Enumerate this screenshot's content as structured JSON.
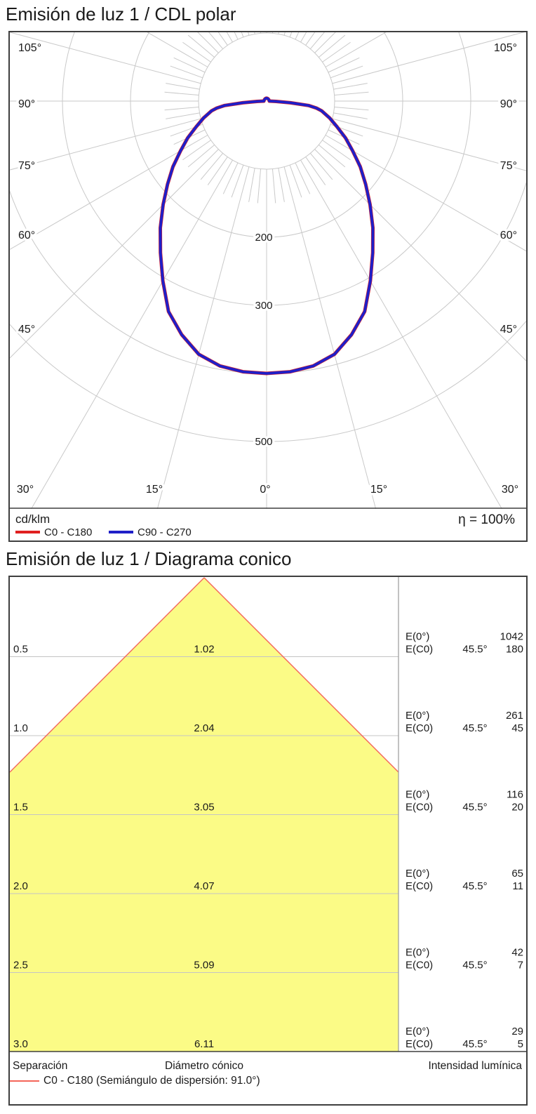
{
  "polar": {
    "title": "Emisión de luz 1 / CDL polar",
    "unit_label": "cd/klm",
    "efficiency_text": "η = 100%",
    "legend": [
      {
        "label": "C0 - C180",
        "color": "#e02020"
      },
      {
        "label": "C90 - C270",
        "color": "#1f1fc8"
      }
    ],
    "ring_values": [
      100,
      200,
      300,
      400,
      500
    ],
    "ring_labels": [
      {
        "text": "200",
        "value": 200
      },
      {
        "text": "300",
        "value": 300
      },
      {
        "text": "500",
        "value": 500
      }
    ],
    "side_angle_labels": [
      {
        "text": "105°",
        "y": 67
      },
      {
        "text": "90°",
        "y": 147
      },
      {
        "text": "75°",
        "y": 235
      },
      {
        "text": "60°",
        "y": 334
      },
      {
        "text": "45°",
        "y": 468
      }
    ],
    "bottom_angle_labels": [
      {
        "text": "30°",
        "x": 36
      },
      {
        "text": "15°",
        "x": 220
      },
      {
        "text": "0°",
        "x": 378
      },
      {
        "text": "15°",
        "x": 540
      },
      {
        "text": "30°",
        "x": 727
      }
    ]
  },
  "cone": {
    "title": "Emisión de luz 1 / Diagrama conico",
    "columns": [
      "Separación",
      "Diámetro cónico",
      "Intensidad lumínica"
    ],
    "legend_text": "C0 - C180 (Semiángulo de dispersión: 91.0°)",
    "edge_color": "#f4665a",
    "fill_color": "#fbfb86",
    "rows": [
      {
        "separation": "0.5",
        "diameter": "1.02",
        "e0_label": "E(0°)",
        "ec0_label": "E(C0)",
        "angle": "45.5°",
        "e0": "1042",
        "ec0": "180"
      },
      {
        "separation": "1.0",
        "diameter": "2.04",
        "e0_label": "E(0°)",
        "ec0_label": "E(C0)",
        "angle": "45.5°",
        "e0": "261",
        "ec0": "45"
      },
      {
        "separation": "1.5",
        "diameter": "3.05",
        "e0_label": "E(0°)",
        "ec0_label": "E(C0)",
        "angle": "45.5°",
        "e0": "116",
        "ec0": "20"
      },
      {
        "separation": "2.0",
        "diameter": "4.07",
        "e0_label": "E(0°)",
        "ec0_label": "E(C0)",
        "angle": "45.5°",
        "e0": "65",
        "ec0": "11"
      },
      {
        "separation": "2.5",
        "diameter": "5.09",
        "e0_label": "E(0°)",
        "ec0_label": "E(C0)",
        "angle": "45.5°",
        "e0": "42",
        "ec0": "7"
      },
      {
        "separation": "3.0",
        "diameter": "6.11",
        "e0_label": "E(0°)",
        "ec0_label": "E(C0)",
        "angle": "45.5°",
        "e0": "29",
        "ec0": "5"
      }
    ]
  },
  "chart_data": [
    {
      "type": "line",
      "subtype": "polar-intensity-curve",
      "title": "Emisión de luz 1 / CDL polar",
      "units": "cd/klm",
      "efficiency": "100%",
      "angular_ticks_deg": [
        0,
        15,
        30,
        45,
        60,
        75,
        90,
        105
      ],
      "radial_ticks": [
        100,
        200,
        300,
        400,
        500
      ],
      "radial_range": [
        0,
        500
      ],
      "grid": true,
      "legend_position": "bottom-left",
      "series": [
        {
          "name": "C0 - C180",
          "color": "#e02020",
          "symmetric_mirror": true,
          "points_deg_cd": [
            [
              0,
              400
            ],
            [
              5,
              399
            ],
            [
              10,
              395
            ],
            [
              15,
              385
            ],
            [
              20,
              365
            ],
            [
              25,
              341
            ],
            [
              30,
              305
            ],
            [
              35,
              272
            ],
            [
              40,
              243
            ],
            [
              45,
              215
            ],
            [
              50,
              190
            ],
            [
              55,
              168
            ],
            [
              60,
              146
            ],
            [
              65,
              128
            ],
            [
              70,
              110
            ],
            [
              75,
              96
            ],
            [
              80,
              82
            ],
            [
              82,
              74
            ],
            [
              84,
              62
            ],
            [
              86,
              35
            ],
            [
              88,
              14
            ],
            [
              90,
              4
            ]
          ]
        },
        {
          "name": "C90 - C270",
          "color": "#1f1fc8",
          "symmetric_mirror": true,
          "points_deg_cd": [
            [
              0,
              400
            ],
            [
              5,
              399
            ],
            [
              10,
              395
            ],
            [
              15,
              385
            ],
            [
              20,
              365
            ],
            [
              25,
              341
            ],
            [
              30,
              305
            ],
            [
              35,
              272
            ],
            [
              40,
              243
            ],
            [
              45,
              215
            ],
            [
              50,
              190
            ],
            [
              55,
              168
            ],
            [
              60,
              146
            ],
            [
              65,
              128
            ],
            [
              70,
              110
            ],
            [
              75,
              96
            ],
            [
              80,
              82
            ],
            [
              82,
              74
            ],
            [
              84,
              62
            ],
            [
              86,
              35
            ],
            [
              88,
              14
            ],
            [
              90,
              4
            ]
          ]
        }
      ]
    },
    {
      "type": "table",
      "subtype": "cone-diagram",
      "title": "Emisión de luz 1 / Diagrama conico",
      "semiangle_deg": 45.5,
      "categories": [
        "Separación (m)",
        "Diámetro cónico (m)",
        "E(0°) lx",
        "E(C0) lx"
      ],
      "separations": [
        0.5,
        1.0,
        1.5,
        2.0,
        2.5,
        3.0
      ],
      "cone_diameters": [
        1.02,
        2.04,
        3.05,
        4.07,
        5.09,
        6.11
      ],
      "E0_values": [
        1042,
        261,
        116,
        65,
        42,
        29
      ],
      "EC0_values": [
        180,
        45,
        20,
        11,
        7,
        5
      ],
      "legend": "C0 - C180 (Semiángulo de dispersión: 91.0°)"
    }
  ]
}
